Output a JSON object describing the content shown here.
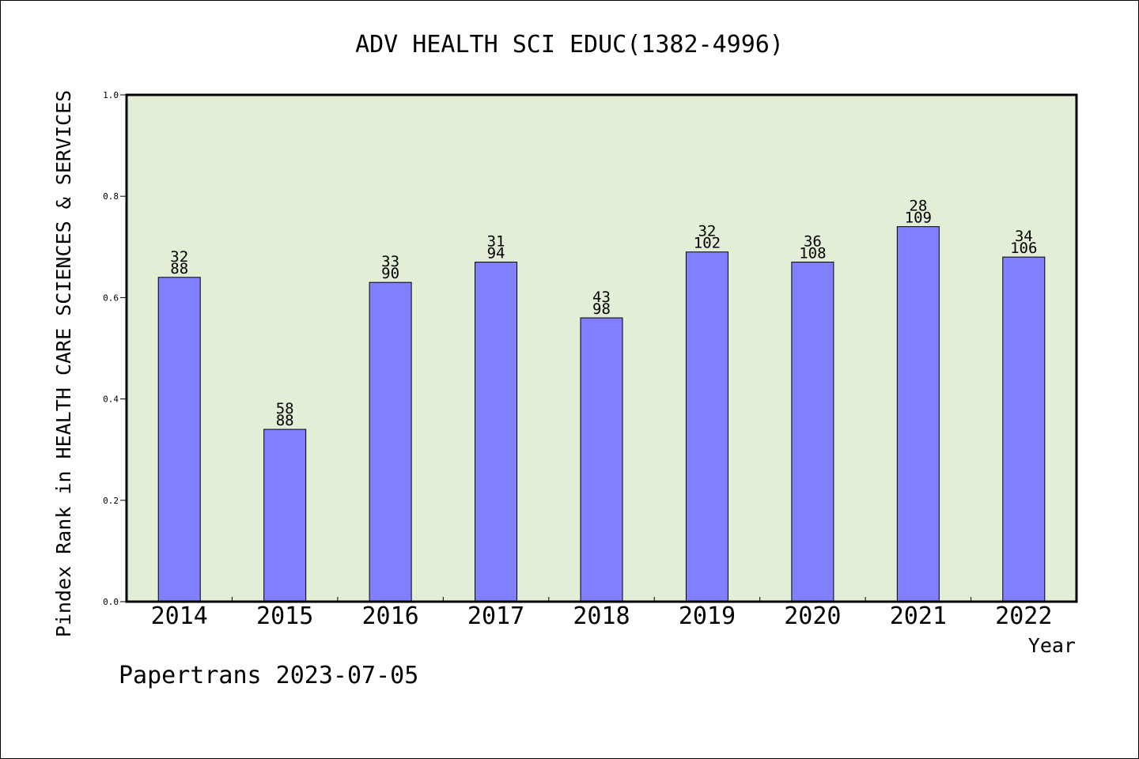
{
  "chart_data": {
    "type": "bar",
    "title": "ADV HEALTH SCI EDUC(1382-4996)",
    "xlabel": "Year",
    "ylabel": "Pindex Rank in HEALTH CARE SCIENCES & SERVICES",
    "footer": "Papertrans 2023-07-05",
    "ylim": [
      0,
      1.0
    ],
    "yticks": [
      "0.0",
      "0.2",
      "0.4",
      "0.6",
      "0.8",
      "1.0"
    ],
    "categories": [
      "2014",
      "2015",
      "2016",
      "2017",
      "2018",
      "2019",
      "2020",
      "2021",
      "2022"
    ],
    "values": [
      0.64,
      0.34,
      0.63,
      0.67,
      0.56,
      0.69,
      0.67,
      0.74,
      0.68
    ],
    "label_top": [
      "32",
      "58",
      "33",
      "31",
      "43",
      "32",
      "36",
      "28",
      "34"
    ],
    "label_bottom": [
      "88",
      "88",
      "90",
      "94",
      "98",
      "102",
      "108",
      "109",
      "106"
    ],
    "grid": false,
    "colors": {
      "plot_background": "#e2efd6",
      "bar_fill": "#8080ff",
      "bar_stroke": "#000000"
    }
  }
}
